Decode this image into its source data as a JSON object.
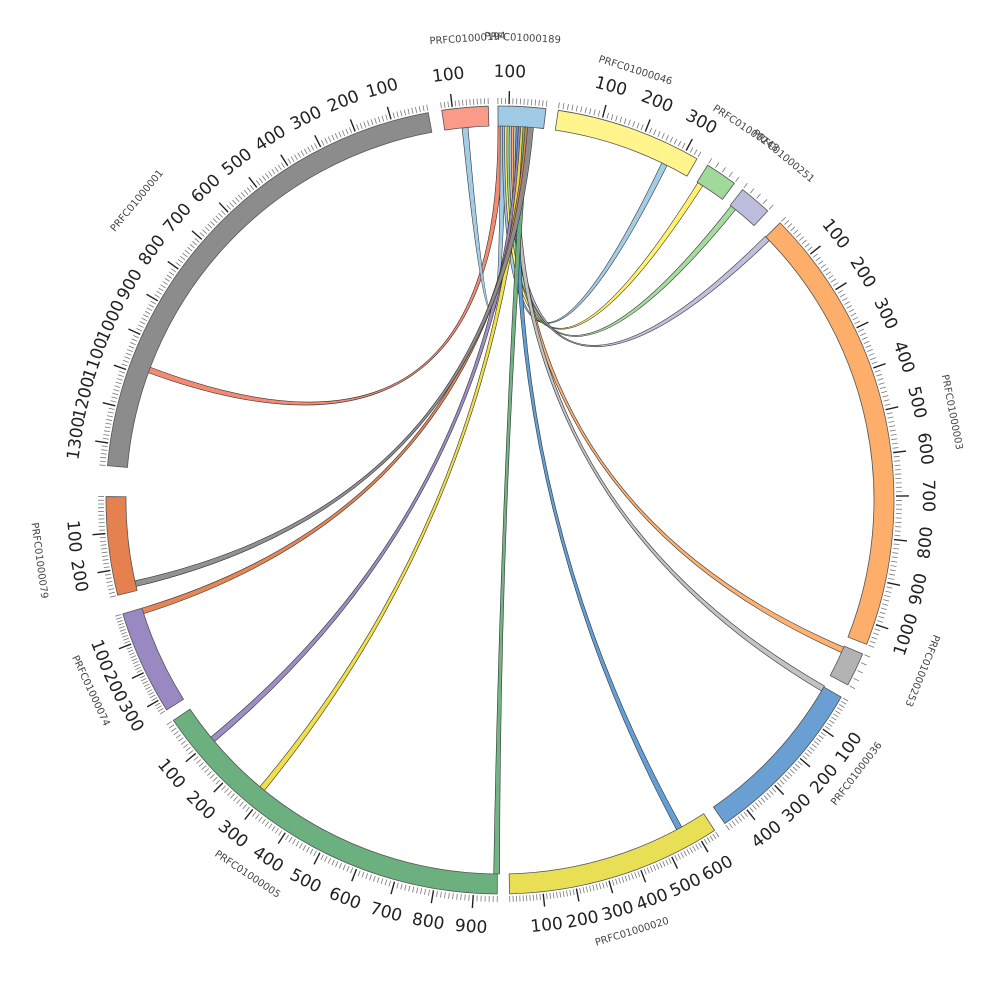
{
  "chart_data": {
    "type": "circos",
    "title": "",
    "segments": [
      {
        "id": "PRFC01000001",
        "label": "PRFC01000001",
        "length": 1360,
        "color": "#8c8c8c",
        "direction": "ccw",
        "tick_labels": [
          "100",
          "200",
          "300",
          "400",
          "500",
          "600",
          "700",
          "800",
          "900",
          "1000",
          "1100",
          "1200",
          "1300"
        ]
      },
      {
        "id": "PRFC01000194",
        "label": "PRFC01000194",
        "length": 130,
        "color": "#fa9b89",
        "direction": "ccw",
        "tick_labels": [
          "100"
        ]
      },
      {
        "id": "PRFC01000189",
        "label": "PRFC01000189",
        "length": 130,
        "color": "#9ecae5",
        "direction": "ccw",
        "tick_labels": [
          "100"
        ]
      },
      {
        "id": "PRFC01000046",
        "label": "PRFC01000046",
        "length": 330,
        "color": "#fff58c",
        "direction": "cw",
        "tick_labels": [
          "100",
          "200",
          "300"
        ]
      },
      {
        "id": "PRFC01000248",
        "label": "PRFC01000248",
        "length": 40,
        "color": "#a1d99b",
        "direction": "cw",
        "tick_labels": []
      },
      {
        "id": "PRFC01000251",
        "label": "PRFC01000251",
        "length": 40,
        "color": "#bcbddc",
        "direction": "cw",
        "tick_labels": []
      },
      {
        "id": "PRFC01000003",
        "label": "PRFC01000003",
        "length": 1050,
        "color": "#fdae6b",
        "direction": "cw",
        "tick_labels": [
          "100",
          "200",
          "300",
          "400",
          "500",
          "600",
          "700",
          "800",
          "900",
          "1000"
        ]
      },
      {
        "id": "PRFC01000253",
        "label": "PRFC01000253",
        "length": 40,
        "color": "#b3b3b3",
        "direction": "cw",
        "tick_labels": []
      },
      {
        "id": "PRFC01000036",
        "label": "PRFC01000036",
        "length": 470,
        "color": "#6a9fd3",
        "direction": "cw",
        "tick_labels": [
          "100",
          "200",
          "300",
          "400"
        ]
      },
      {
        "id": "PRFC01000020",
        "label": "PRFC01000020",
        "length": 650,
        "color": "#e9df55",
        "direction": "ccw",
        "tick_labels": [
          "100",
          "200",
          "300",
          "400",
          "500",
          "600"
        ]
      },
      {
        "id": "PRFC01000005",
        "label": "PRFC01000005",
        "length": 960,
        "color": "#6bb07e",
        "direction": "ccw",
        "tick_labels": [
          "100",
          "200",
          "300",
          "400",
          "500",
          "600",
          "700",
          "800",
          "900"
        ]
      },
      {
        "id": "PRFC01000074",
        "label": "PRFC01000074",
        "length": 340,
        "color": "#9a88c3",
        "direction": "ccw",
        "tick_labels": [
          "100",
          "200",
          "300"
        ]
      },
      {
        "id": "PRFC01000079",
        "label": "PRFC01000079",
        "length": 270,
        "color": "#e5804f",
        "direction": "ccw",
        "tick_labels": [
          "100",
          "200"
        ]
      }
    ],
    "links": [
      {
        "source": "PRFC01000189",
        "target": "PRFC01000001",
        "target_pos": 1080,
        "color": "#f4846a"
      },
      {
        "source": "PRFC01000189",
        "target": "PRFC01000194",
        "target_pos": 70,
        "color": "#9ecae5"
      },
      {
        "source": "PRFC01000189",
        "target": "PRFC01000046",
        "target_pos": 270,
        "color": "#9ecae5"
      },
      {
        "source": "PRFC01000189",
        "target": "PRFC01000248",
        "target_pos": 5,
        "color": "#fff066"
      },
      {
        "source": "PRFC01000189",
        "target": "PRFC01000251",
        "target_pos": 5,
        "color": "#a1d99b"
      },
      {
        "source": "PRFC01000189",
        "target": "PRFC01000003",
        "target_pos": 5,
        "color": "#bcbddc"
      },
      {
        "source": "PRFC01000189",
        "target": "PRFC01000253",
        "target_pos": 5,
        "color": "#fdae6b"
      },
      {
        "source": "PRFC01000189",
        "target": "PRFC01000036",
        "target_pos": 5,
        "color": "#c0c0c0"
      },
      {
        "source": "PRFC01000189",
        "target": "PRFC01000020",
        "target_pos": 560,
        "color": "#5b9bd5"
      },
      {
        "source": "PRFC01000189",
        "target": "PRFC01000005",
        "target_pos": 100,
        "color": "#9a88c3"
      },
      {
        "source": "PRFC01000189",
        "target": "PRFC01000005",
        "target_pos": 285,
        "color": "#f0dc40"
      },
      {
        "source": "PRFC01000189",
        "target": "PRFC01000005",
        "target_pos": 958,
        "color": "#6bb07e"
      },
      {
        "source": "PRFC01000189",
        "target": "PRFC01000074",
        "target_pos": 10,
        "color": "#e5804f"
      },
      {
        "source": "PRFC01000189",
        "target": "PRFC01000079",
        "target_pos": 250,
        "color": "#8c8c8c"
      }
    ]
  }
}
